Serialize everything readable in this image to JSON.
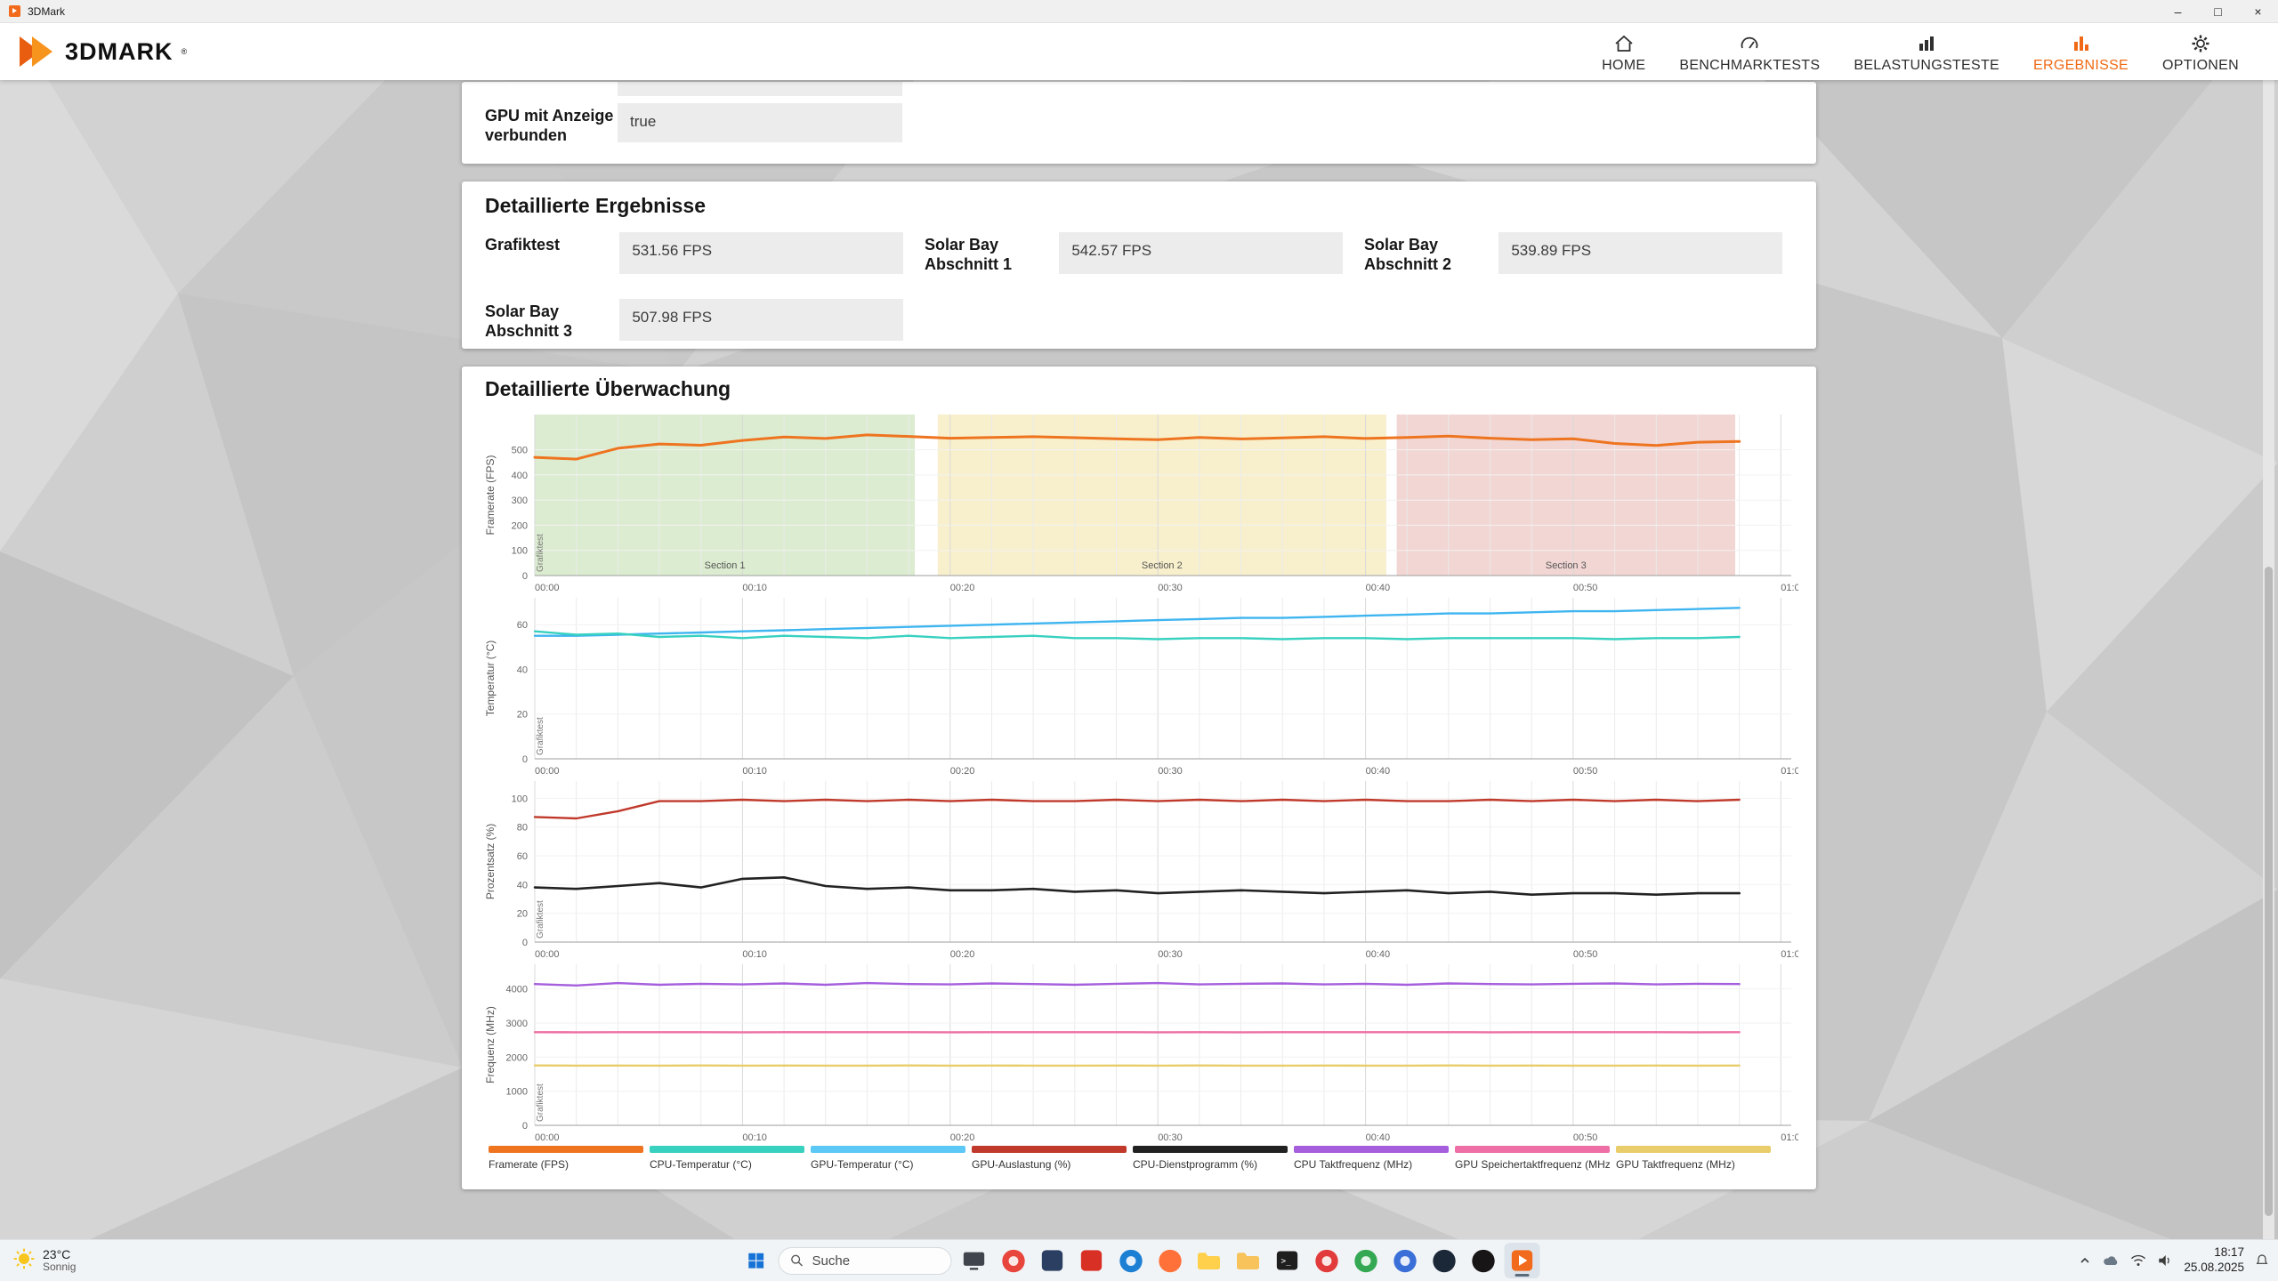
{
  "colors": {
    "accent": "#f26a1b"
  },
  "window": {
    "title": "3DMark",
    "controls": {
      "minimize": "–",
      "maximize": "□",
      "close": "×"
    }
  },
  "header": {
    "logo_text": "3DMARK",
    "logo_reg": "®",
    "active_index": 3,
    "nav": [
      {
        "label": "HOME"
      },
      {
        "label": "BENCHMARKTESTS"
      },
      {
        "label": "BELASTUNGSTESTE"
      },
      {
        "label": "ERGEBNISSE"
      },
      {
        "label": "OPTIONEN"
      }
    ]
  },
  "info_card": {
    "field_label": "GPU mit Anzeige verbunden",
    "field_value": "true"
  },
  "results_card": {
    "title": "Detaillierte Ergebnisse",
    "fields": [
      {
        "label": "Grafiktest",
        "value": "531.56 FPS"
      },
      {
        "label": "Solar Bay Abschnitt 1",
        "value": "542.57 FPS"
      },
      {
        "label": "Solar Bay Abschnitt 2",
        "value": "539.89 FPS"
      },
      {
        "label": "Solar Bay Abschnitt 3",
        "value": "507.98 FPS"
      }
    ]
  },
  "monitoring_card": {
    "title": "Detaillierte Überwachung"
  },
  "chart_data": [
    {
      "type": "line",
      "ylabel": "Framerate (FPS)",
      "ylim": [
        0,
        640
      ],
      "yticks": [
        0,
        100,
        200,
        300,
        400,
        500
      ],
      "xlim": [
        0,
        60.5
      ],
      "xticks": [
        "00:00",
        "00:10",
        "00:20",
        "00:30",
        "00:40",
        "00:50",
        "01:00"
      ],
      "run_label": "Grafiktest",
      "sections": [
        {
          "label": "Section 1",
          "start": 0,
          "end": 18.3,
          "color": "#dcecd0"
        },
        {
          "label": "Section 2",
          "start": 19.4,
          "end": 41.0,
          "color": "#f8f0cc"
        },
        {
          "label": "Section 3",
          "start": 41.5,
          "end": 57.8,
          "color": "#f1d6d3"
        }
      ],
      "series": [
        {
          "name": "Framerate (FPS)",
          "color": "#ee7420",
          "width": 3,
          "x_step": 2,
          "values": [
            470,
            463,
            506,
            523,
            518,
            537,
            551,
            545,
            559,
            553,
            546,
            549,
            552,
            548,
            544,
            540,
            549,
            543,
            547,
            552,
            545,
            549,
            554,
            546,
            540,
            544,
            525,
            517,
            530,
            533
          ]
        }
      ]
    },
    {
      "type": "line",
      "ylabel": "Temperatur (°C)",
      "ylim": [
        0,
        72
      ],
      "yticks": [
        0,
        20,
        40,
        60
      ],
      "xlim": [
        0,
        60.5
      ],
      "xticks": [
        "00:00",
        "00:10",
        "00:20",
        "00:30",
        "00:40",
        "00:50",
        "01:00"
      ],
      "run_label": "Grafiktest",
      "series": [
        {
          "name": "GPU-Temperatur (°C)",
          "color": "#3fb5f0",
          "width": 2.4,
          "x_step": 2,
          "values": [
            55,
            55,
            55.5,
            56,
            56.5,
            57,
            57.5,
            58,
            58.5,
            59,
            59.5,
            60,
            60.5,
            61,
            61.5,
            62,
            62.5,
            63,
            63,
            63.5,
            64,
            64.5,
            65,
            65,
            65.5,
            66,
            66,
            66.5,
            67,
            67.5
          ]
        },
        {
          "name": "CPU-Temperatur (°C)",
          "color": "#38d1c0",
          "width": 2.4,
          "x_step": 2,
          "values": [
            57,
            55.5,
            56,
            54.5,
            55,
            54,
            55,
            54.5,
            54,
            55,
            54,
            54.5,
            55,
            54,
            54,
            53.5,
            54,
            54,
            53.5,
            54,
            54,
            53.5,
            54,
            54,
            54,
            54,
            53.5,
            54,
            54,
            54.5
          ]
        }
      ]
    },
    {
      "type": "line",
      "ylabel": "Prozentsatz (%)",
      "ylim": [
        0,
        112
      ],
      "yticks": [
        0,
        20,
        40,
        60,
        80,
        100
      ],
      "xlim": [
        0,
        60.5
      ],
      "xticks": [
        "00:00",
        "00:10",
        "00:20",
        "00:30",
        "00:40",
        "00:50",
        "01:00"
      ],
      "run_label": "Grafiktest",
      "series": [
        {
          "name": "GPU-Auslastung (%)",
          "color": "#c0392b",
          "width": 2.4,
          "x_step": 2,
          "values": [
            87,
            86,
            91,
            98,
            98,
            99,
            98,
            99,
            98,
            99,
            98,
            99,
            98,
            98,
            99,
            98,
            99,
            98,
            99,
            98,
            99,
            98,
            98,
            99,
            98,
            99,
            98,
            99,
            98,
            99
          ]
        },
        {
          "name": "CPU-Dienstprogramm (%)",
          "color": "#222222",
          "width": 2.6,
          "x_step": 2,
          "values": [
            38,
            37,
            39,
            41,
            38,
            44,
            45,
            39,
            37,
            38,
            36,
            36,
            37,
            35,
            36,
            34,
            35,
            36,
            35,
            34,
            35,
            36,
            34,
            35,
            33,
            34,
            34,
            33,
            34,
            34
          ]
        }
      ]
    },
    {
      "type": "line",
      "ylabel": "Frequenz (MHz)",
      "ylim": [
        0,
        4720
      ],
      "yticks": [
        0,
        1000,
        2000,
        3000,
        4000
      ],
      "xlim": [
        0,
        60.5
      ],
      "xticks": [
        "00:00",
        "00:10",
        "00:20",
        "00:30",
        "00:40",
        "00:50",
        "01:00"
      ],
      "run_label": "Grafiktest",
      "series": [
        {
          "name": "CPU Taktfrequenz (MHz)",
          "color": "#a55fdd",
          "width": 2.4,
          "x_step": 2,
          "values": [
            4140,
            4100,
            4170,
            4120,
            4150,
            4130,
            4160,
            4120,
            4170,
            4140,
            4130,
            4160,
            4140,
            4120,
            4150,
            4170,
            4130,
            4150,
            4160,
            4130,
            4150,
            4120,
            4160,
            4140,
            4130,
            4150,
            4160,
            4130,
            4150,
            4140
          ]
        },
        {
          "name": "GPU Speichertaktfrequenz (MHz)",
          "color": "#ee6fa5",
          "width": 2.4,
          "x_step": 2,
          "values": [
            2730,
            2728,
            2731,
            2729,
            2730,
            2727,
            2730,
            2729,
            2731,
            2730,
            2728,
            2730,
            2729,
            2731,
            2730,
            2728,
            2730,
            2727,
            2730,
            2731,
            2729,
            2730,
            2730,
            2728,
            2730,
            2729,
            2731,
            2730,
            2728,
            2730
          ]
        },
        {
          "name": "GPU Taktfrequenz (MHz)",
          "color": "#e8cd6a",
          "width": 2.4,
          "x_step": 2,
          "values": [
            1755,
            1750,
            1753,
            1750,
            1754,
            1750,
            1752,
            1750,
            1751,
            1754,
            1750,
            1753,
            1750,
            1751,
            1753,
            1750,
            1754,
            1750,
            1751,
            1753,
            1750,
            1751,
            1754,
            1750,
            1752,
            1750,
            1751,
            1753,
            1750,
            1752
          ]
        }
      ]
    }
  ],
  "legend": [
    {
      "label": "Framerate (FPS)",
      "color": "#ee7420"
    },
    {
      "label": "CPU-Temperatur (°C)",
      "color": "#38d1c0"
    },
    {
      "label": "GPU-Temperatur (°C)",
      "color": "#5bc8f5"
    },
    {
      "label": "GPU-Auslastung (%)",
      "color": "#c0392b"
    },
    {
      "label": "CPU-Dienstprogramm (%)",
      "color": "#222222"
    },
    {
      "label": "CPU Taktfrequenz (MHz)",
      "color": "#a55fdd"
    },
    {
      "label": "GPU Speichertaktfrequenz (MHz)",
      "color": "#ee6fa5"
    },
    {
      "label": "GPU Taktfrequenz (MHz)",
      "color": "#e8cd6a"
    }
  ],
  "taskbar": {
    "weather_temp": "23°C",
    "weather_condition": "Sonnig",
    "search_placeholder": "Suche",
    "time": "18:17",
    "date": "25.08.2025",
    "apps": [
      {
        "name": "task-view",
        "shape": "monitor",
        "color": "#40454d"
      },
      {
        "name": "chrome",
        "shape": "circle",
        "color": "#e8453c",
        "dot": true
      },
      {
        "name": "cpu-z",
        "shape": "square",
        "color": "#2b3f63"
      },
      {
        "name": "acrobat",
        "shape": "square",
        "color": "#d93025"
      },
      {
        "name": "edge",
        "shape": "circle",
        "color": "#1b7fd4",
        "dot": true
      },
      {
        "name": "firefox",
        "shape": "circle",
        "color": "#ff7139"
      },
      {
        "name": "explorer",
        "shape": "folder",
        "color": "#ffd04c"
      },
      {
        "name": "folder",
        "shape": "folder",
        "color": "#f7c35a"
      },
      {
        "name": "terminal",
        "shape": "terminal",
        "color": "#1e1e1e"
      },
      {
        "name": "opera",
        "shape": "circle",
        "color": "#e23b3b",
        "dot": true
      },
      {
        "name": "play-store",
        "shape": "circle",
        "color": "#34a853",
        "dot": true
      },
      {
        "name": "browser-blue",
        "shape": "circle",
        "color": "#3a6fd8",
        "dot": true
      },
      {
        "name": "steam",
        "shape": "circle",
        "color": "#1b2838"
      },
      {
        "name": "github",
        "shape": "circle",
        "color": "#171515"
      },
      {
        "name": "3dmark",
        "shape": "mark",
        "color": "#f26a1b",
        "active": true
      }
    ]
  }
}
